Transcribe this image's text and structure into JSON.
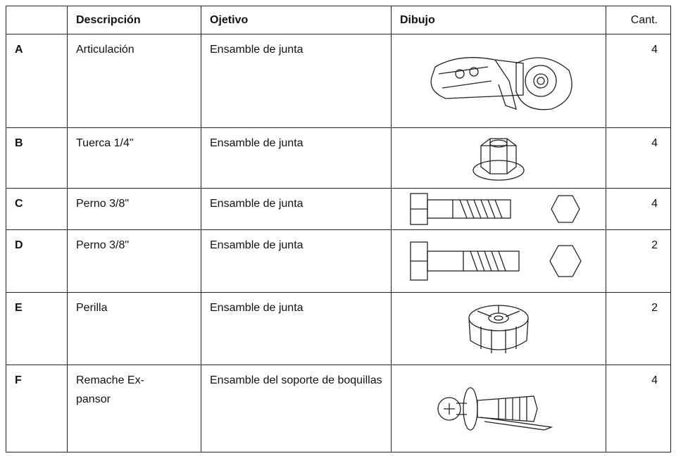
{
  "table": {
    "header": [
      "Descripción",
      "Ojetivo",
      "Dibujo",
      "Cant."
    ],
    "rows": [
      {
        "id": "A",
        "description": "Articulación",
        "objective": "Ensamble de junta",
        "qty": 4
      },
      {
        "id": "B",
        "description": "Tuerca 1/4\"",
        "objective": "Ensamble de junta",
        "qty": 4
      },
      {
        "id": "C",
        "description": "Perno 3/8\"",
        "objective": "Ensamble de junta",
        "qty": 4
      },
      {
        "id": "D",
        "description": "Perno 3/8\"",
        "objective": "Ensamble de junta",
        "qty": 2
      },
      {
        "id": "E",
        "description": "Perilla",
        "objective": "Ensamble de junta",
        "qty": 2
      },
      {
        "id": "F",
        "description": "Remache Ex-\npansor",
        "objective": "Ensamble del soporte de boquillas",
        "qty": 4
      }
    ]
  }
}
